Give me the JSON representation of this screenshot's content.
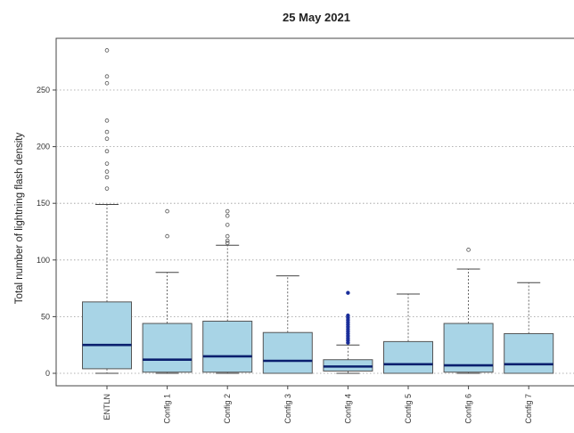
{
  "chart_data": {
    "type": "box",
    "title": "25 May 2021",
    "xlabel": "",
    "ylabel": "Total number of lightning flash density",
    "ylim": [
      -10,
      300
    ],
    "yticks": [
      0,
      50,
      100,
      150,
      200,
      250
    ],
    "grid": "horizontal dotted",
    "colors": {
      "box_fill": "#a8d4e6",
      "box_stroke": "#555555",
      "median": "#0a1f6e",
      "outlier_open": "#555555",
      "outlier_filled": "#1a2e9a",
      "whisker": "#444444"
    },
    "categories": [
      "ENTLN",
      "Config 1",
      "Config 2",
      "Config 3",
      "Config 4",
      "Config 5",
      "Config 6",
      "Config 7"
    ],
    "boxes": [
      {
        "label": "ENTLN",
        "min": 0,
        "q1": 4,
        "median": 25,
        "q3": 63,
        "max": 149,
        "outliers": [
          163,
          173,
          178,
          185,
          196,
          207,
          213,
          223,
          256,
          262,
          285
        ],
        "outlier_style": "open"
      },
      {
        "label": "Config 1",
        "min": 0,
        "q1": 1,
        "median": 12,
        "q3": 44,
        "max": 89,
        "outliers": [
          121,
          143
        ],
        "outlier_style": "open"
      },
      {
        "label": "Config 2",
        "min": 0,
        "q1": 1,
        "median": 15,
        "q3": 46,
        "max": 113,
        "outliers": [
          115,
          117,
          121,
          131,
          139,
          143
        ],
        "outlier_style": "open"
      },
      {
        "label": "Config 3",
        "min": 0,
        "q1": 0,
        "median": 11,
        "q3": 36,
        "max": 86,
        "outliers": [],
        "outlier_style": "open"
      },
      {
        "label": "Config 4",
        "min": 0,
        "q1": 2,
        "median": 6,
        "q3": 12,
        "max": 25,
        "outliers": [
          27,
          29,
          31,
          33,
          35,
          37,
          39,
          41,
          43,
          45,
          47,
          49,
          51,
          71
        ],
        "outlier_style": "filled"
      },
      {
        "label": "Config 5",
        "min": 0,
        "q1": 0,
        "median": 8,
        "q3": 28,
        "max": 70,
        "outliers": [],
        "outlier_style": "open"
      },
      {
        "label": "Config 6",
        "min": 0,
        "q1": 1,
        "median": 7,
        "q3": 44,
        "max": 92,
        "outliers": [
          109
        ],
        "outlier_style": "open"
      },
      {
        "label": "Config 7",
        "min": 0,
        "q1": 0,
        "median": 8,
        "q3": 35,
        "max": 80,
        "outliers": [],
        "outlier_style": "open"
      }
    ]
  }
}
